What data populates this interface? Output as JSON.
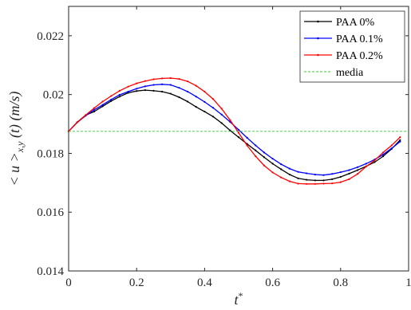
{
  "chart_data": {
    "type": "line",
    "xlabel": "t*",
    "ylabel": "< u >x,y (t) (m/s)",
    "xlim": [
      0,
      1
    ],
    "ylim": [
      0.014,
      0.023
    ],
    "xticks": [
      0,
      0.2,
      0.4,
      0.6,
      0.8,
      1
    ],
    "yticks": [
      0.014,
      0.016,
      0.018,
      0.02,
      0.022
    ],
    "xtick_labels": [
      "0",
      "0.2",
      "0.4",
      "0.6",
      "0.8",
      "1"
    ],
    "ytick_labels": [
      "0.014",
      "0.016",
      "0.018",
      "0.02",
      "0.022"
    ],
    "grid": false,
    "legend_position": "top-right",
    "series": [
      {
        "name": "PAA 0%",
        "color": "#000000",
        "marker": "dot",
        "x": [
          0.0,
          0.025,
          0.05,
          0.075,
          0.1,
          0.125,
          0.15,
          0.175,
          0.2,
          0.225,
          0.25,
          0.275,
          0.3,
          0.325,
          0.35,
          0.375,
          0.4,
          0.425,
          0.45,
          0.475,
          0.5,
          0.525,
          0.55,
          0.575,
          0.6,
          0.625,
          0.65,
          0.675,
          0.7,
          0.725,
          0.75,
          0.775,
          0.8,
          0.825,
          0.85,
          0.875,
          0.9,
          0.925,
          0.95,
          0.975
        ],
        "y": [
          0.01875,
          0.01906,
          0.0193,
          0.01942,
          0.0196,
          0.01978,
          0.01993,
          0.02006,
          0.02012,
          0.02015,
          0.02013,
          0.0201,
          0.02003,
          0.01991,
          0.01976,
          0.01958,
          0.01942,
          0.01925,
          0.01903,
          0.01878,
          0.01855,
          0.01832,
          0.0181,
          0.01787,
          0.01765,
          0.01746,
          0.01728,
          0.01715,
          0.0171,
          0.01708,
          0.01708,
          0.01712,
          0.0172,
          0.01731,
          0.01743,
          0.01756,
          0.0177,
          0.0179,
          0.01815,
          0.01845
        ]
      },
      {
        "name": "PAA 0.1%",
        "color": "#0000ff",
        "marker": "dot",
        "x": [
          0.0,
          0.025,
          0.05,
          0.075,
          0.1,
          0.125,
          0.15,
          0.175,
          0.2,
          0.225,
          0.25,
          0.275,
          0.3,
          0.325,
          0.35,
          0.375,
          0.4,
          0.425,
          0.45,
          0.475,
          0.5,
          0.525,
          0.55,
          0.575,
          0.6,
          0.625,
          0.65,
          0.675,
          0.7,
          0.725,
          0.75,
          0.775,
          0.8,
          0.825,
          0.85,
          0.875,
          0.9,
          0.925,
          0.95,
          0.975
        ],
        "y": [
          0.01875,
          0.01905,
          0.01928,
          0.01948,
          0.01965,
          0.01983,
          0.01999,
          0.0201,
          0.0202,
          0.02028,
          0.02033,
          0.02035,
          0.02033,
          0.02023,
          0.0201,
          0.01993,
          0.01975,
          0.01955,
          0.01932,
          0.01907,
          0.0188,
          0.01853,
          0.01827,
          0.01803,
          0.01782,
          0.01763,
          0.01748,
          0.01737,
          0.01732,
          0.01728,
          0.01726,
          0.0173,
          0.01736,
          0.01743,
          0.01753,
          0.01765,
          0.01779,
          0.01796,
          0.01817,
          0.0184
        ]
      },
      {
        "name": "PAA 0.2%",
        "color": "#ff0000",
        "marker": "dot",
        "x": [
          0.0,
          0.025,
          0.05,
          0.075,
          0.1,
          0.125,
          0.15,
          0.175,
          0.2,
          0.225,
          0.25,
          0.275,
          0.3,
          0.325,
          0.35,
          0.375,
          0.4,
          0.425,
          0.45,
          0.475,
          0.5,
          0.525,
          0.55,
          0.575,
          0.6,
          0.625,
          0.65,
          0.675,
          0.7,
          0.725,
          0.75,
          0.775,
          0.8,
          0.825,
          0.85,
          0.875,
          0.9,
          0.925,
          0.95,
          0.975
        ],
        "y": [
          0.01875,
          0.01905,
          0.0193,
          0.01954,
          0.01976,
          0.01995,
          0.02013,
          0.02027,
          0.02038,
          0.02046,
          0.02052,
          0.02055,
          0.02056,
          0.02053,
          0.02045,
          0.0203,
          0.0201,
          0.01985,
          0.01952,
          0.01913,
          0.0187,
          0.01827,
          0.0179,
          0.01759,
          0.01735,
          0.01718,
          0.01705,
          0.01697,
          0.01696,
          0.01696,
          0.01697,
          0.01698,
          0.01702,
          0.01712,
          0.0173,
          0.01755,
          0.01776,
          0.01803,
          0.01827,
          0.01855
        ]
      },
      {
        "name": "media",
        "color": "#33cc33",
        "style": "dashed",
        "x": [
          0,
          1
        ],
        "y": [
          0.01875,
          0.01875
        ]
      }
    ]
  }
}
